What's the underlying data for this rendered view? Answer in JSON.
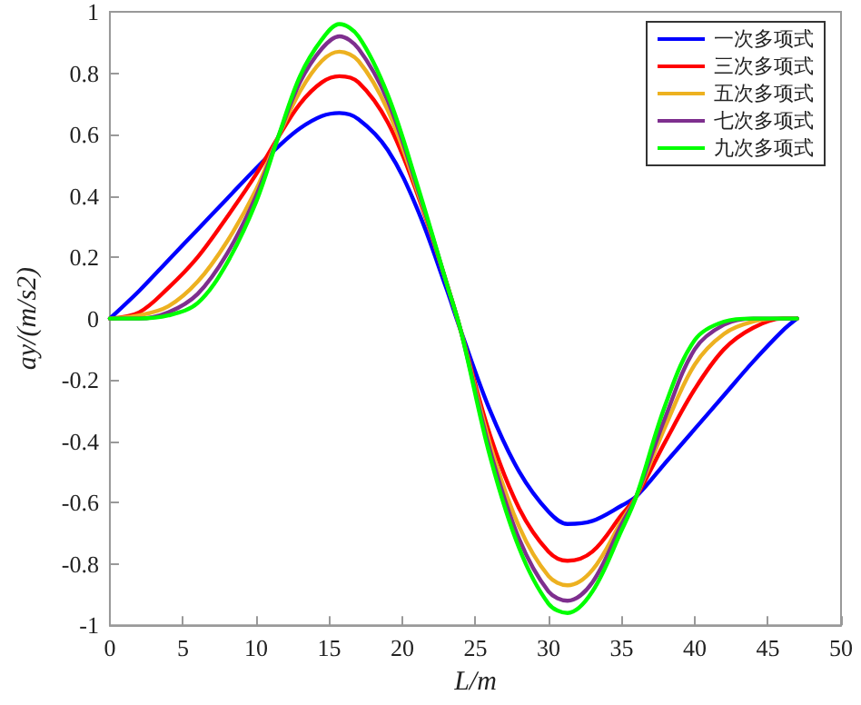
{
  "chart_data": {
    "type": "line",
    "xlabel": "L/m",
    "ylabel": "ay/(m/s2)",
    "x": [
      0,
      2,
      4,
      6,
      8,
      10,
      11.5,
      13,
      14.5,
      15.7,
      17,
      19,
      21,
      23,
      24,
      26,
      28,
      30,
      31.3,
      33,
      35,
      36,
      38,
      40,
      42,
      44,
      46,
      47
    ],
    "series": [
      {
        "name": "一次多项式",
        "color": "#0000ff",
        "values": [
          0,
          0.09,
          0.19,
          0.29,
          0.39,
          0.49,
          0.56,
          0.62,
          0.66,
          0.67,
          0.65,
          0.55,
          0.36,
          0.1,
          -0.04,
          -0.3,
          -0.5,
          -0.63,
          -0.67,
          -0.66,
          -0.61,
          -0.58,
          -0.47,
          -0.36,
          -0.25,
          -0.14,
          -0.04,
          0
        ]
      },
      {
        "name": "三次多项式",
        "color": "#ff0000",
        "values": [
          0,
          0.02,
          0.1,
          0.2,
          0.33,
          0.47,
          0.59,
          0.7,
          0.77,
          0.79,
          0.77,
          0.64,
          0.41,
          0.12,
          -0.04,
          -0.38,
          -0.62,
          -0.76,
          -0.79,
          -0.76,
          -0.64,
          -0.58,
          -0.4,
          -0.23,
          -0.1,
          -0.03,
          0,
          0
        ]
      },
      {
        "name": "五次多项式",
        "color": "#edb120",
        "values": [
          0,
          0.01,
          0.04,
          0.12,
          0.25,
          0.42,
          0.59,
          0.74,
          0.84,
          0.87,
          0.84,
          0.68,
          0.42,
          0.12,
          -0.04,
          -0.41,
          -0.68,
          -0.84,
          -0.87,
          -0.82,
          -0.66,
          -0.58,
          -0.35,
          -0.15,
          -0.05,
          -0.01,
          0,
          0
        ]
      },
      {
        "name": "七次多项式",
        "color": "#7e2f8e",
        "values": [
          0,
          0,
          0.02,
          0.08,
          0.21,
          0.4,
          0.59,
          0.77,
          0.88,
          0.92,
          0.88,
          0.71,
          0.43,
          0.12,
          -0.04,
          -0.43,
          -0.72,
          -0.89,
          -0.92,
          -0.86,
          -0.67,
          -0.58,
          -0.32,
          -0.1,
          -0.02,
          0,
          0,
          0
        ]
      },
      {
        "name": "九次多项式",
        "color": "#00ff00",
        "values": [
          0,
          0,
          0.01,
          0.05,
          0.18,
          0.38,
          0.59,
          0.79,
          0.91,
          0.96,
          0.92,
          0.73,
          0.44,
          0.12,
          -0.04,
          -0.45,
          -0.75,
          -0.93,
          -0.96,
          -0.89,
          -0.69,
          -0.58,
          -0.28,
          -0.07,
          -0.01,
          0,
          0,
          0
        ]
      }
    ],
    "xlim": [
      0,
      50
    ],
    "xticks": [
      0,
      5,
      10,
      15,
      20,
      25,
      30,
      35,
      40,
      45,
      50
    ],
    "ylim": [
      -1,
      1
    ],
    "yticks": [
      -1,
      -0.8,
      -0.6,
      -0.4,
      -0.2,
      0,
      0.2,
      0.4,
      0.6,
      0.8,
      1
    ],
    "grid": false,
    "legend": "top right",
    "marker": "none",
    "line_style": "solid"
  }
}
